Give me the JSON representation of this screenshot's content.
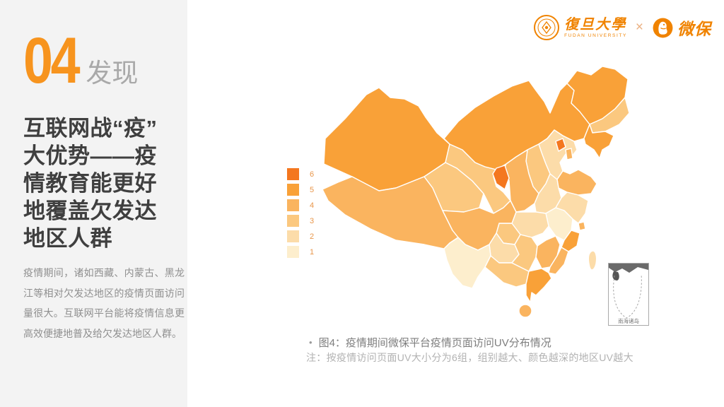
{
  "page": {
    "background": "#FFFFFF",
    "sidebar_background": "#F3F3F3",
    "accent_color": "#F7941E"
  },
  "header": {
    "fudan_logo": {
      "name_cn": "復旦大學",
      "name_en": "FUDAN UNIVERSITY"
    },
    "separator": "×",
    "wesure_logo": {
      "name": "微保"
    },
    "brand_color": "#F08300"
  },
  "sidebar": {
    "section_number": "04",
    "section_label": "发现",
    "title_lines": [
      "互联网战“疫”",
      "大优势——疫",
      "情教育能更好",
      "地覆盖欠发达",
      "地区人群"
    ],
    "paragraph": "疫情期间，诸如西藏、内蒙古、黑龙江等相对欠发达地区的疫情页面访问量很大。互联网平台能将疫情信息更高效便捷地普及给欠发达地区人群。"
  },
  "figure": {
    "caption_bullet": "•",
    "caption": "图4：疫情期间微保平台疫情页面访问UV分布情况",
    "note": "注：按疫情访问页面UV大小分为6组，组别越大、颜色越深的地区UV越大",
    "inset_label": "南海诸岛"
  },
  "chart_data": {
    "type": "heatmap",
    "subtype": "choropleth-map-china",
    "title": "疫情期间微保平台疫情页面访问UV分布情况",
    "unit": "UV分组（1-6，组别越大UV越大）",
    "legend_position": "left",
    "legend": [
      {
        "label": "6",
        "color": "#F4771F"
      },
      {
        "label": "5",
        "color": "#F9A138"
      },
      {
        "label": "4",
        "color": "#FAB45F"
      },
      {
        "label": "3",
        "color": "#FBC87F"
      },
      {
        "label": "2",
        "color": "#FCDCA9"
      },
      {
        "label": "1",
        "color": "#FDEECD"
      }
    ],
    "regions": {
      "新疆": 5,
      "西藏": 4,
      "青海": 3,
      "甘肃": 3,
      "内蒙古": 5,
      "黑龙江": 5,
      "吉林": 3,
      "辽宁": 5,
      "北京": 6,
      "天津": 4,
      "河北": 2,
      "山西": 3,
      "陕西": 4,
      "宁夏": 6,
      "山东": 4,
      "河南": 2,
      "江苏": 2,
      "安徽": 1,
      "上海": 4,
      "湖北": 2,
      "重庆": 3,
      "四川": 4,
      "贵州": 2,
      "云南": 1,
      "广西": 3,
      "湖南": 3,
      "江西": 4,
      "浙江": 5,
      "福建": 4,
      "广东": 5,
      "海南": 4,
      "台湾": 2
    },
    "border_color": "#FFFFFF"
  }
}
